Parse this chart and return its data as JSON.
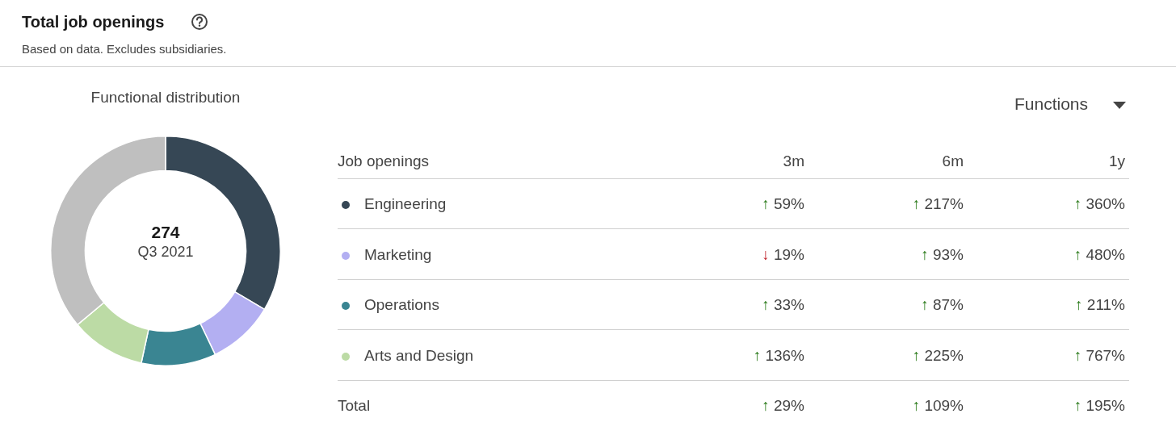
{
  "chart_data": [
    {
      "type": "donut",
      "title": "Total job openings",
      "subtitle": "Based on data. Excludes subsidiaries.",
      "annotations": [
        "Functional distribution",
        "274",
        "Q3 2021"
      ],
      "categories": [
        "Engineering",
        "Marketing",
        "Operations",
        "Arts and Design",
        null
      ],
      "values": [
        33.5,
        9.4,
        10.5,
        10.5,
        36.1
      ],
      "colors": [
        "#364755",
        "#b3aff2",
        "#3a8592",
        "#bcdba5",
        "#bfbfbf"
      ]
    },
    {
      "type": "other",
      "annotations": [
        "Functions",
        "Job openings",
        "3m",
        "6m",
        "1y",
        "↑ 59%",
        "↑ 217%",
        "↑ 360%",
        "↓ 19%",
        "↑ 93%",
        "↑ 480%",
        "↑ 33%",
        "↑ 87%",
        "↑ 211%",
        "↑ 136%",
        "↑ 225%",
        "↑ 767%",
        "Total",
        "↑ 29%",
        "↑ 109%",
        "↑ 195%"
      ],
      "colors": [
        null,
        null,
        null,
        null,
        null,
        "#2e7d1e",
        "#2e7d1e",
        "#2e7d1e",
        "#c0262d",
        "#2e7d1e",
        "#2e7d1e",
        "#2e7d1e",
        "#2e7d1e",
        "#2e7d1e",
        "#2e7d1e",
        "#2e7d1e",
        "#2e7d1e",
        null,
        "#2e7d1e",
        "#2e7d1e",
        "#2e7d1e"
      ]
    }
  ]
}
